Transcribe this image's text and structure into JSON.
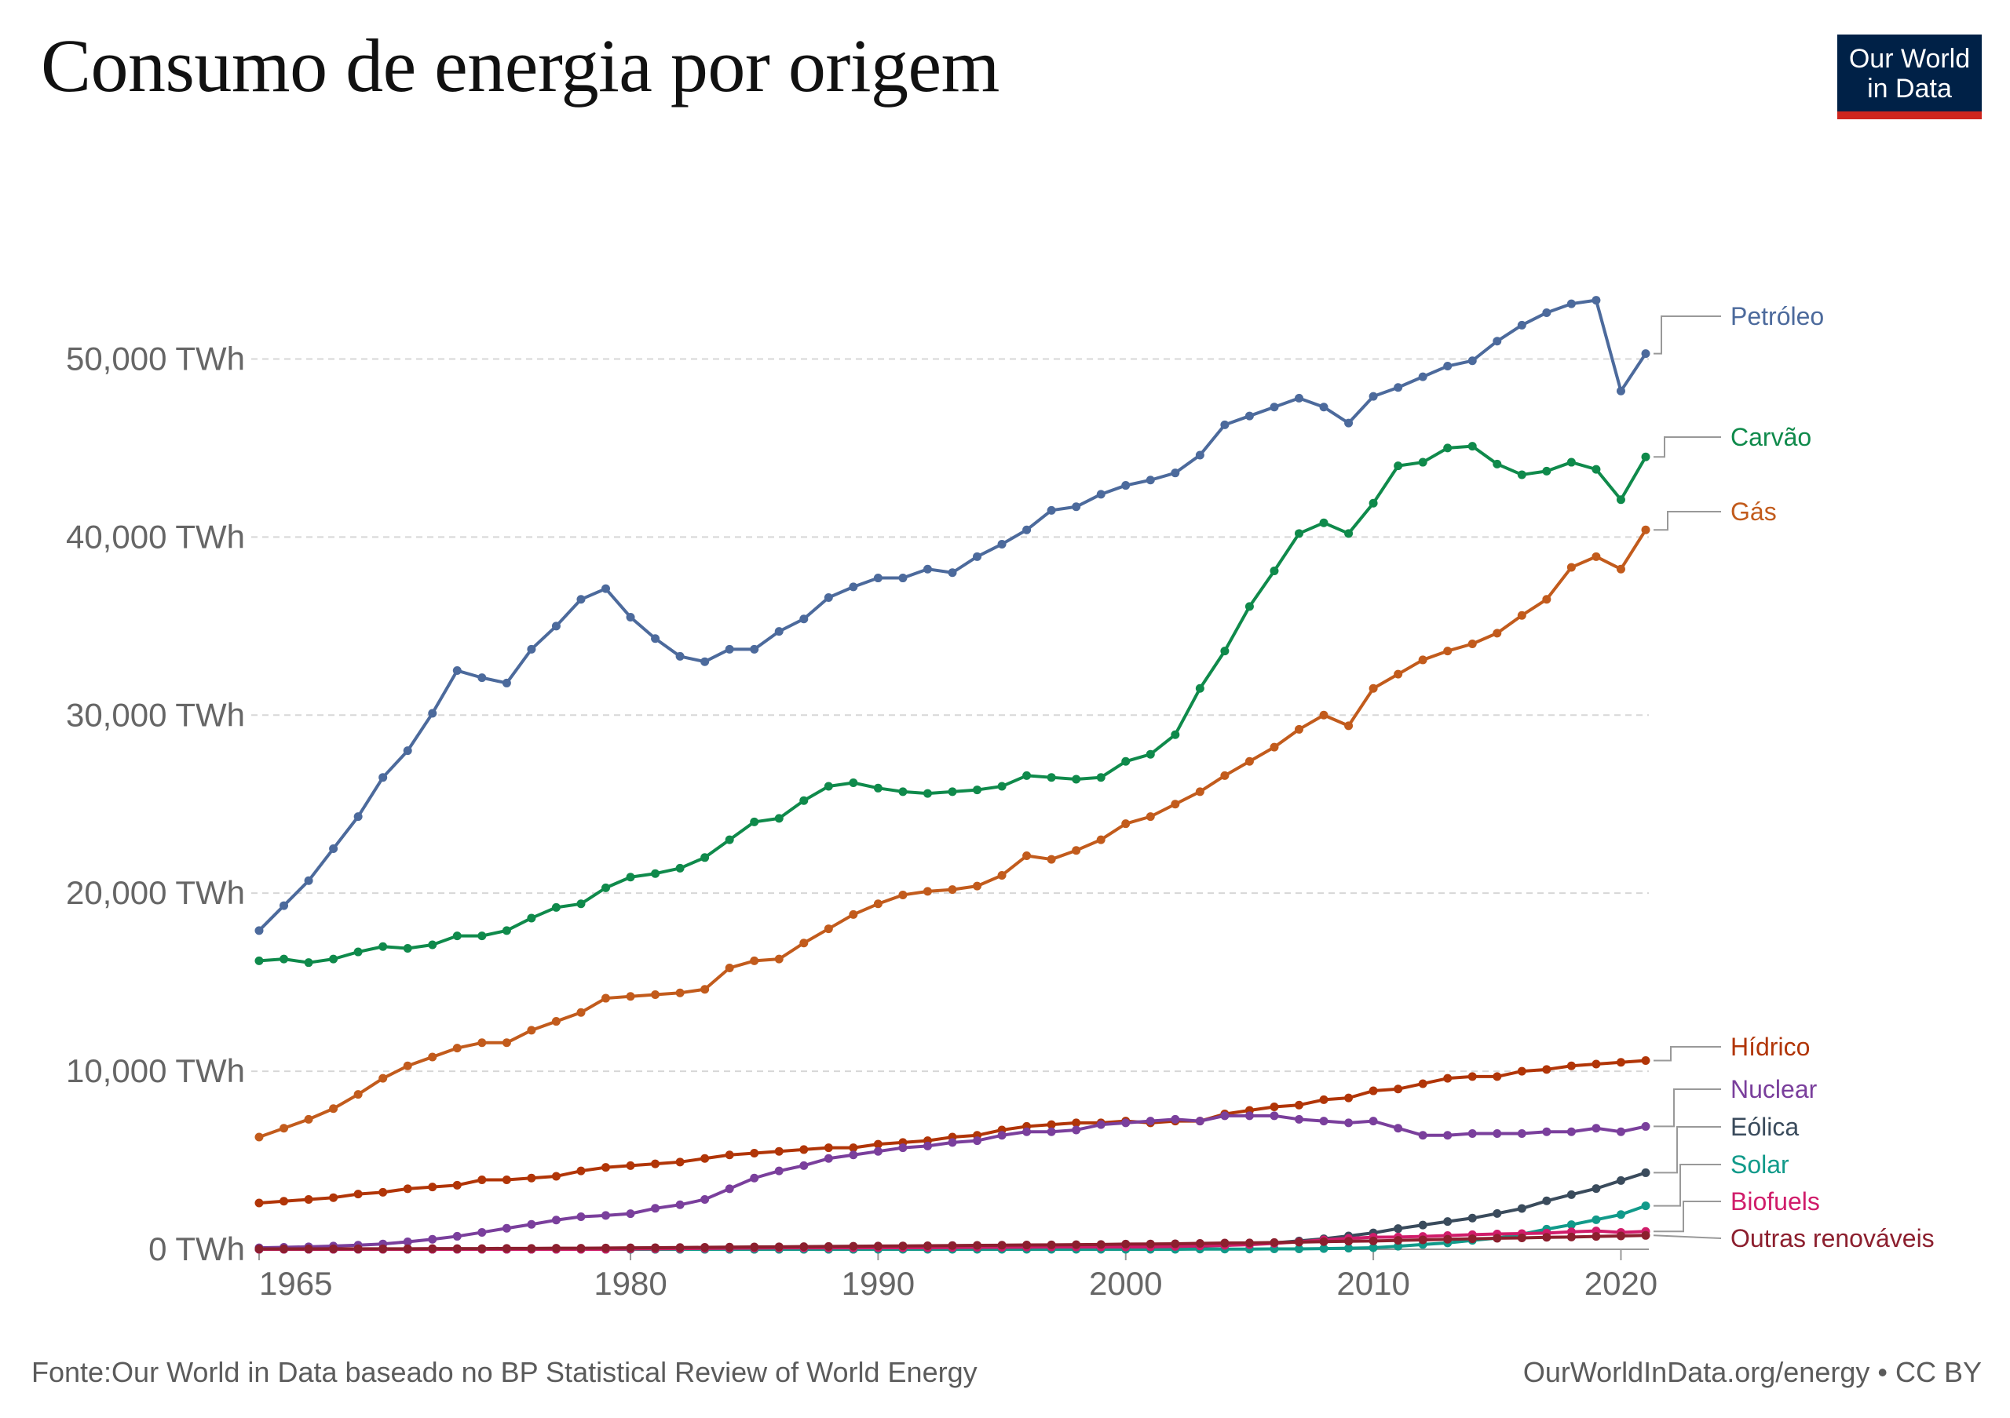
{
  "title": "Consumo de energia por origem",
  "logo": {
    "line1": "Our World",
    "line2": "in Data",
    "bg": "#002147",
    "accent": "#ce261e"
  },
  "footer": {
    "source": "Fonte:Our World in Data baseado no BP Statistical Review of World Energy",
    "link": "OurWorldInData.org/energy • CC BY"
  },
  "chart_data": {
    "type": "line",
    "title": "Consumo de energia por origem",
    "xlabel": "",
    "ylabel": "",
    "xlim": [
      1965,
      2021
    ],
    "ylim": [
      0,
      55000
    ],
    "x_ticks": [
      1965,
      1980,
      1990,
      2000,
      2010,
      2020
    ],
    "y_ticks": [
      0,
      10000,
      20000,
      30000,
      40000,
      50000
    ],
    "y_tick_labels": [
      "0 TWh",
      "10,000 TWh",
      "20,000 TWh",
      "30,000 TWh",
      "40,000 TWh",
      "50,000 TWh"
    ],
    "grid": "horizontal dashed",
    "legend": "right, labels at line ends",
    "x": [
      1965,
      1966,
      1967,
      1968,
      1969,
      1970,
      1971,
      1972,
      1973,
      1974,
      1975,
      1976,
      1977,
      1978,
      1979,
      1980,
      1981,
      1982,
      1983,
      1984,
      1985,
      1986,
      1987,
      1988,
      1989,
      1990,
      1991,
      1992,
      1993,
      1994,
      1995,
      1996,
      1997,
      1998,
      1999,
      2000,
      2001,
      2002,
      2003,
      2004,
      2005,
      2006,
      2007,
      2008,
      2009,
      2010,
      2011,
      2012,
      2013,
      2014,
      2015,
      2016,
      2017,
      2018,
      2019,
      2020,
      2021
    ],
    "series": [
      {
        "name": "Petróleo",
        "color": "#4c6a9c",
        "values": [
          17900,
          19300,
          20700,
          22500,
          24300,
          26500,
          28000,
          30100,
          32500,
          32100,
          31800,
          33700,
          35000,
          36500,
          37100,
          35500,
          34300,
          33300,
          33000,
          33700,
          33700,
          34700,
          35400,
          36600,
          37200,
          37700,
          37700,
          38200,
          38000,
          38900,
          39600,
          40400,
          41500,
          41700,
          42400,
          42900,
          43200,
          43600,
          44600,
          46300,
          46800,
          47300,
          47800,
          47300,
          46400,
          47900,
          48400,
          49000,
          49600,
          49900,
          51000,
          51900,
          52600,
          53100,
          53300,
          48200,
          50300
        ]
      },
      {
        "name": "Carvão",
        "color": "#0f8a4b",
        "values": [
          16200,
          16300,
          16100,
          16300,
          16700,
          17000,
          16900,
          17100,
          17600,
          17600,
          17900,
          18600,
          19200,
          19400,
          20300,
          20900,
          21100,
          21400,
          22000,
          23000,
          24000,
          24200,
          25200,
          26000,
          26200,
          25900,
          25700,
          25600,
          25700,
          25800,
          26000,
          26600,
          26500,
          26400,
          26500,
          27400,
          27800,
          28900,
          31500,
          33600,
          36100,
          38100,
          40200,
          40800,
          40200,
          41900,
          44000,
          44200,
          45000,
          45100,
          44100,
          43500,
          43700,
          44200,
          43800,
          42100,
          44500
        ]
      },
      {
        "name": "Gás",
        "color": "#c25b1c",
        "values": [
          6300,
          6800,
          7300,
          7900,
          8700,
          9600,
          10300,
          10800,
          11300,
          11600,
          11600,
          12300,
          12800,
          13300,
          14100,
          14200,
          14300,
          14400,
          14600,
          15800,
          16200,
          16300,
          17200,
          18000,
          18800,
          19400,
          19900,
          20100,
          20200,
          20400,
          21000,
          22100,
          21900,
          22400,
          23000,
          23900,
          24300,
          25000,
          25700,
          26600,
          27400,
          28200,
          29200,
          30000,
          29400,
          31500,
          32300,
          33100,
          33600,
          34000,
          34600,
          35600,
          36500,
          38300,
          38900,
          38200,
          40400
        ]
      },
      {
        "name": "Hídrico",
        "color": "#b13507",
        "values": [
          2600,
          2700,
          2800,
          2900,
          3100,
          3200,
          3400,
          3500,
          3600,
          3900,
          3900,
          4000,
          4100,
          4400,
          4600,
          4700,
          4800,
          4900,
          5100,
          5300,
          5400,
          5500,
          5600,
          5700,
          5700,
          5900,
          6000,
          6100,
          6300,
          6400,
          6700,
          6900,
          7000,
          7100,
          7100,
          7200,
          7100,
          7200,
          7200,
          7600,
          7800,
          8000,
          8100,
          8400,
          8500,
          8900,
          9000,
          9300,
          9600,
          9700,
          9700,
          10000,
          10100,
          10300,
          10400,
          10500,
          10600
        ]
      },
      {
        "name": "Nuclear",
        "color": "#7a3f9c",
        "values": [
          80,
          110,
          140,
          180,
          230,
          300,
          420,
          560,
          730,
          950,
          1180,
          1400,
          1640,
          1830,
          1900,
          2000,
          2300,
          2500,
          2800,
          3400,
          4000,
          4400,
          4700,
          5100,
          5300,
          5500,
          5700,
          5800,
          6000,
          6100,
          6400,
          6600,
          6600,
          6700,
          7000,
          7100,
          7200,
          7300,
          7200,
          7500,
          7500,
          7500,
          7300,
          7200,
          7100,
          7200,
          6800,
          6400,
          6400,
          6500,
          6500,
          6500,
          6600,
          6600,
          6800,
          6600,
          6900
        ]
      },
      {
        "name": "Eólica",
        "color": "#3a4b5c",
        "values": [
          0,
          0,
          0,
          0,
          0,
          0,
          0,
          0,
          0,
          0,
          0,
          0,
          0,
          0,
          0,
          0,
          0,
          0,
          0,
          0,
          0,
          0,
          0,
          0,
          0,
          10,
          10,
          10,
          10,
          10,
          10,
          20,
          30,
          30,
          40,
          80,
          100,
          130,
          160,
          220,
          300,
          360,
          470,
          590,
          750,
          920,
          1160,
          1360,
          1560,
          1750,
          2010,
          2290,
          2720,
          3070,
          3410,
          3860,
          4300
        ]
      },
      {
        "name": "Solar",
        "color": "#119a8a",
        "values": [
          0,
          0,
          0,
          0,
          0,
          0,
          0,
          0,
          0,
          0,
          0,
          0,
          0,
          0,
          0,
          0,
          0,
          0,
          0,
          0,
          0,
          0,
          0,
          0,
          0,
          0,
          0,
          0,
          0,
          0,
          0,
          0,
          0,
          0,
          0,
          0,
          0,
          0,
          10,
          10,
          10,
          20,
          20,
          40,
          60,
          90,
          170,
          270,
          360,
          500,
          630,
          850,
          1130,
          1380,
          1660,
          1950,
          2440
        ]
      },
      {
        "name": "Biofuels",
        "color": "#d01c6a",
        "values": [
          0,
          0,
          0,
          0,
          0,
          0,
          0,
          0,
          0,
          0,
          0,
          0,
          0,
          0,
          0,
          20,
          30,
          40,
          50,
          60,
          70,
          80,
          80,
          80,
          80,
          90,
          90,
          90,
          100,
          110,
          110,
          120,
          130,
          130,
          130,
          130,
          140,
          160,
          190,
          220,
          260,
          330,
          420,
          530,
          610,
          680,
          690,
          720,
          770,
          820,
          860,
          880,
          910,
          980,
          1030,
          950,
          1000
        ]
      },
      {
        "name": "Outras renováveis",
        "color": "#8c1f2e",
        "values": [
          20,
          20,
          20,
          30,
          30,
          30,
          30,
          40,
          40,
          40,
          50,
          50,
          60,
          60,
          70,
          80,
          90,
          100,
          110,
          120,
          130,
          140,
          150,
          160,
          170,
          180,
          190,
          200,
          210,
          220,
          230,
          240,
          250,
          260,
          270,
          290,
          300,
          310,
          330,
          350,
          360,
          380,
          400,
          430,
          450,
          470,
          500,
          530,
          560,
          590,
          620,
          640,
          670,
          690,
          720,
          750,
          780
        ]
      }
    ]
  }
}
